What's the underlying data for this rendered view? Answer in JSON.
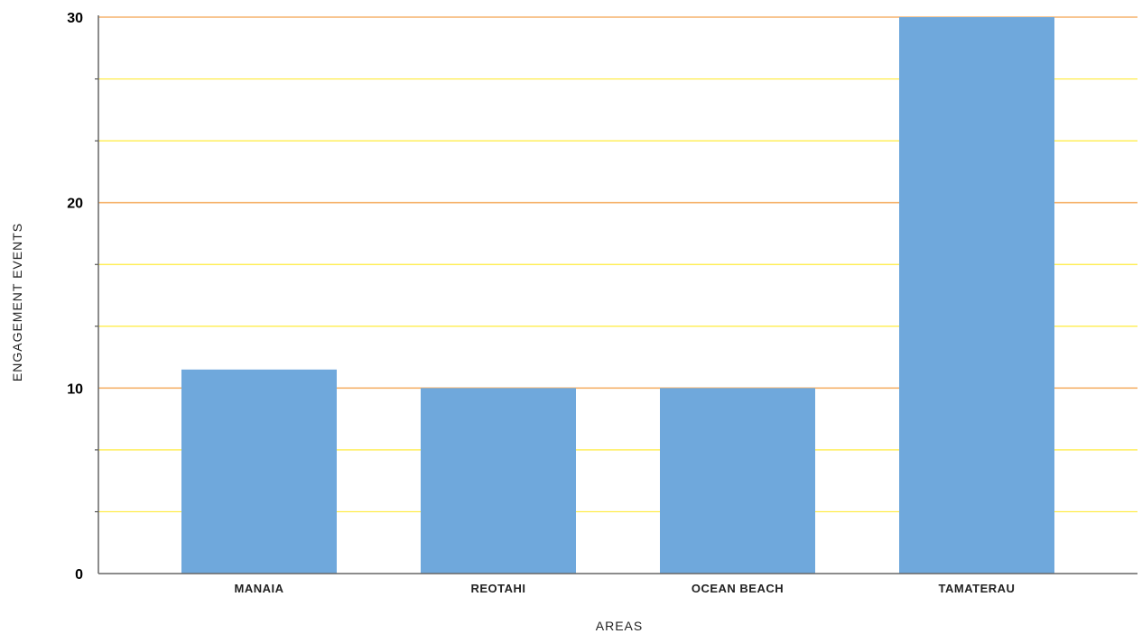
{
  "chart_data": {
    "type": "bar",
    "title": "",
    "xlabel": "AREAS",
    "ylabel": "ENGAGEMENT EVENTS",
    "categories": [
      "MANAIA",
      "REOTAHI",
      "OCEAN BEACH",
      "TAMATERAU"
    ],
    "values": [
      11,
      10,
      10,
      30
    ],
    "ylim": [
      0,
      30
    ],
    "y_major_ticks": [
      0,
      10,
      20,
      30
    ],
    "y_minor_step": 3.3333,
    "grid": true,
    "legend": "none",
    "colors": {
      "bar": "#6fa8dc",
      "major_grid": "#f6b26b",
      "minor_grid": "#ffeb3b",
      "axis": "#666666"
    }
  }
}
